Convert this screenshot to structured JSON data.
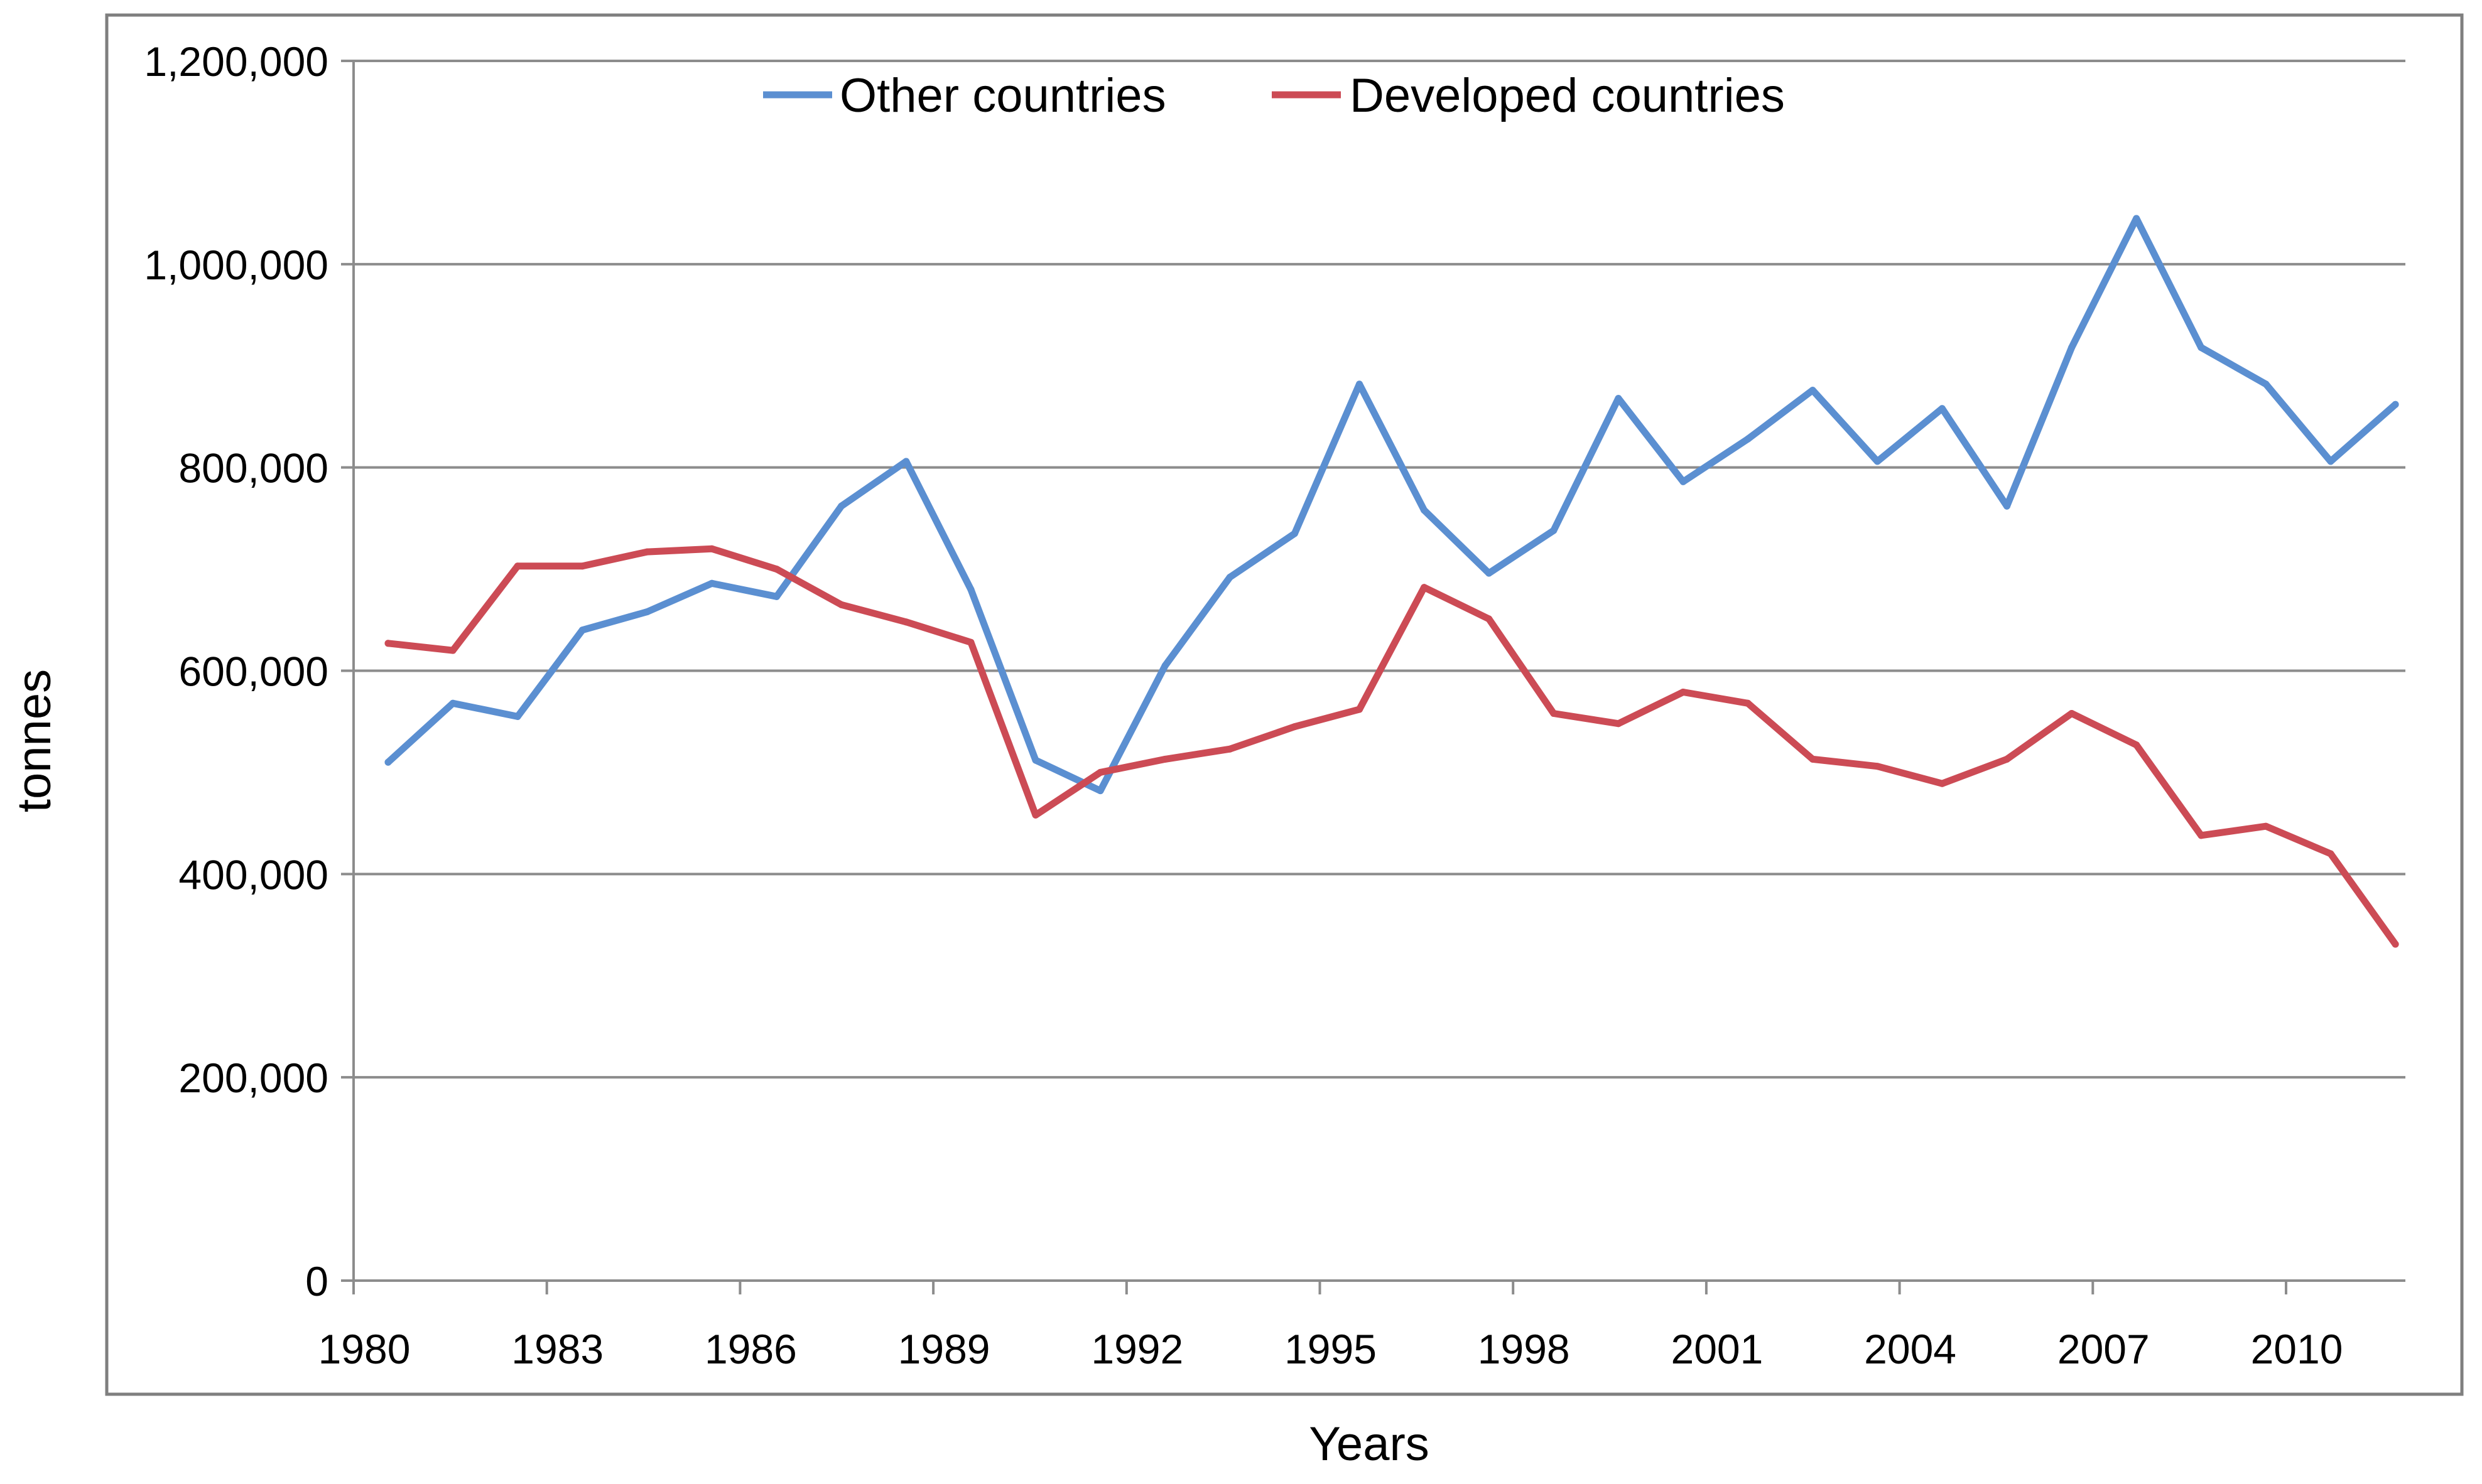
{
  "chart_data": {
    "type": "line",
    "title": "",
    "xlabel": "Years",
    "ylabel": "tonnes",
    "ylim": [
      0,
      1200000
    ],
    "yticks": [
      0,
      200000,
      400000,
      600000,
      800000,
      1000000,
      1200000
    ],
    "ytick_labels": [
      "0",
      "200,000",
      "400,000",
      "600,000",
      "800,000",
      "1,000,000",
      "1,200,000"
    ],
    "xticks": [
      "1980",
      "1983",
      "1986",
      "1989",
      "1992",
      "1995",
      "1998",
      "2001",
      "2004",
      "2007",
      "2010"
    ],
    "grid": "horizontal",
    "legend_position": "top-center",
    "x": [
      1980,
      1981,
      1982,
      1983,
      1984,
      1985,
      1986,
      1987,
      1988,
      1989,
      1990,
      1991,
      1992,
      1993,
      1994,
      1995,
      1996,
      1997,
      1998,
      1999,
      2000,
      2001,
      2002,
      2003,
      2004,
      2005,
      2006,
      2007,
      2008,
      2009,
      2010,
      2011
    ],
    "series": [
      {
        "name": "Other countries",
        "color": "#5b8fd1",
        "values": [
          510000,
          568000,
          555000,
          640000,
          658000,
          686000,
          673000,
          762000,
          806000,
          680000,
          512000,
          482000,
          605000,
          692000,
          735000,
          882000,
          758000,
          696000,
          738000,
          868000,
          786000,
          828000,
          876000,
          806000,
          858000,
          762000,
          918000,
          1045000,
          918000,
          882000,
          806000,
          862000
        ]
      },
      {
        "name": "Developed countries",
        "color": "#cc4b55",
        "values": [
          627000,
          620000,
          703000,
          703000,
          717000,
          720000,
          700000,
          665000,
          648000,
          628000,
          458000,
          500000,
          513000,
          523000,
          545000,
          562000,
          682000,
          651000,
          558000,
          548000,
          579000,
          568000,
          513000,
          506000,
          489000,
          513000,
          558000,
          527000,
          438000,
          447000,
          420000,
          331000
        ]
      }
    ]
  }
}
